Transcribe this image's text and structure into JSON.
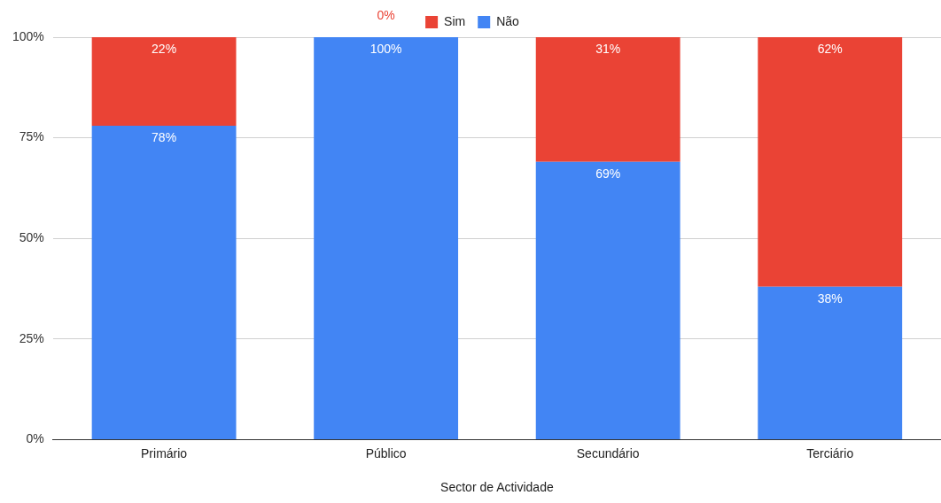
{
  "chart_data": {
    "type": "bar",
    "stacked": true,
    "xlabel": "Sector de Actividade",
    "categories": [
      "Primário",
      "Público",
      "Secundário",
      "Terciário"
    ],
    "series": [
      {
        "name": "Não",
        "color": "#4285f4",
        "values": [
          78,
          100,
          69,
          38
        ],
        "value_labels": [
          "78%",
          "100%",
          "69%",
          "38%"
        ]
      },
      {
        "name": "Sim",
        "color": "#ea4335",
        "values": [
          22,
          0,
          31,
          62
        ],
        "value_labels": [
          "22%",
          "0%",
          "31%",
          "62%"
        ]
      }
    ],
    "ylim": [
      0,
      100
    ],
    "yticks": [
      {
        "value": 0,
        "label": "0%"
      },
      {
        "value": 25,
        "label": "25%"
      },
      {
        "value": 50,
        "label": "50%"
      },
      {
        "value": 75,
        "label": "75%"
      },
      {
        "value": 100,
        "label": "100%"
      }
    ],
    "grid": "y",
    "legend": "top"
  }
}
